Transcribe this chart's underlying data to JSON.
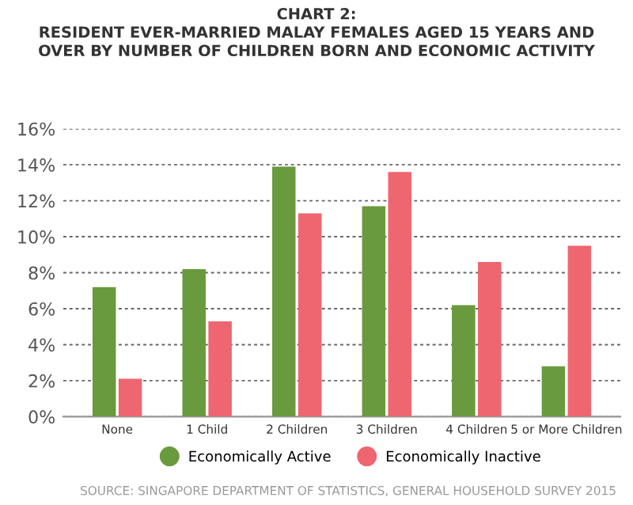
{
  "chart_data": {
    "type": "bar",
    "title": "CHART 2:\nRESIDENT EVER-MARRIED MALAY FEMALES AGED 15 YEARS AND\nOVER BY NUMBER OF CHILDREN BORN AND ECONOMIC ACTIVITY",
    "categories": [
      "None",
      "1 Child",
      "2 Children",
      "3 Children",
      "4 Children",
      "5 or More Children"
    ],
    "series": [
      {
        "name": "Economically Active",
        "color": "#6a9a3e",
        "values": [
          7.2,
          8.2,
          13.9,
          11.7,
          6.2,
          2.8
        ]
      },
      {
        "name": "Economically Inactive",
        "color": "#ee6670",
        "values": [
          2.1,
          5.3,
          11.3,
          13.6,
          8.6,
          9.5
        ]
      }
    ],
    "ylim": [
      0,
      16
    ],
    "yticks": [
      {
        "value": 0,
        "label": "0%"
      },
      {
        "value": 2,
        "label": "2%"
      },
      {
        "value": 4,
        "label": "4%"
      },
      {
        "value": 6,
        "label": "6%"
      },
      {
        "value": 8,
        "label": "8%"
      },
      {
        "value": 10,
        "label": "10%"
      },
      {
        "value": 12,
        "label": "12%"
      },
      {
        "value": 14,
        "label": "14%"
      },
      {
        "value": 16,
        "label": "16%"
      }
    ],
    "grid": "y",
    "legend": "bottom",
    "annotations": [
      "SOURCE: SINGAPORE DEPARTMENT OF STATISTICS, GENERAL HOUSEHOLD SURVEY 2015"
    ]
  }
}
